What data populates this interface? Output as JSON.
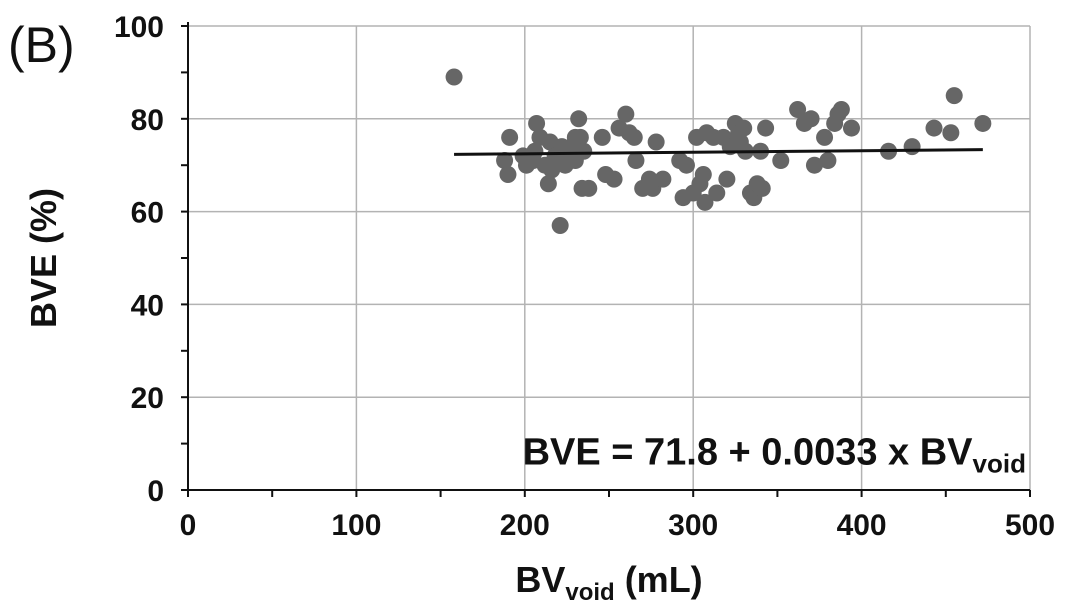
{
  "panel_label": "(B)",
  "chart_data": {
    "type": "scatter",
    "title": "",
    "xlabel": {
      "main": "BV",
      "sub": "void",
      "tail": " (mL)"
    },
    "ylabel": "BVE (%)",
    "xlim": [
      0,
      500
    ],
    "ylim": [
      0,
      100
    ],
    "xticks": [
      0,
      100,
      200,
      300,
      400,
      500
    ],
    "yticks": [
      0,
      20,
      40,
      60,
      80,
      100
    ],
    "x_minor_step": 50,
    "y_minor_step": 10,
    "grid": true,
    "point_color": "#666666",
    "line_color": "#111111",
    "points": [
      [
        158,
        89
      ],
      [
        188,
        71
      ],
      [
        190,
        68
      ],
      [
        191,
        76
      ],
      [
        199,
        72
      ],
      [
        201,
        70
      ],
      [
        205,
        71
      ],
      [
        206,
        73
      ],
      [
        207,
        79
      ],
      [
        209,
        76
      ],
      [
        212,
        70
      ],
      [
        214,
        66
      ],
      [
        215,
        75
      ],
      [
        216,
        69
      ],
      [
        218,
        72
      ],
      [
        219,
        71
      ],
      [
        221,
        57
      ],
      [
        222,
        74
      ],
      [
        224,
        70
      ],
      [
        226,
        73
      ],
      [
        228,
        74
      ],
      [
        230,
        71
      ],
      [
        230,
        76
      ],
      [
        232,
        80
      ],
      [
        233,
        76
      ],
      [
        234,
        65
      ],
      [
        235,
        73
      ],
      [
        238,
        65
      ],
      [
        246,
        76
      ],
      [
        248,
        68
      ],
      [
        253,
        67
      ],
      [
        256,
        78
      ],
      [
        260,
        81
      ],
      [
        262,
        77
      ],
      [
        265,
        76
      ],
      [
        266,
        71
      ],
      [
        270,
        65
      ],
      [
        274,
        67
      ],
      [
        276,
        65
      ],
      [
        278,
        75
      ],
      [
        282,
        67
      ],
      [
        292,
        71
      ],
      [
        294,
        63
      ],
      [
        296,
        70
      ],
      [
        300,
        64
      ],
      [
        302,
        76
      ],
      [
        304,
        66
      ],
      [
        306,
        68
      ],
      [
        307,
        62
      ],
      [
        308,
        77
      ],
      [
        312,
        76
      ],
      [
        314,
        64
      ],
      [
        318,
        76
      ],
      [
        320,
        67
      ],
      [
        322,
        74
      ],
      [
        325,
        79
      ],
      [
        326,
        75
      ],
      [
        327,
        77
      ],
      [
        328,
        75
      ],
      [
        330,
        78
      ],
      [
        331,
        73
      ],
      [
        334,
        64
      ],
      [
        336,
        63
      ],
      [
        338,
        66
      ],
      [
        340,
        73
      ],
      [
        341,
        65
      ],
      [
        343,
        78
      ],
      [
        352,
        71
      ],
      [
        362,
        82
      ],
      [
        366,
        79
      ],
      [
        370,
        80
      ],
      [
        372,
        70
      ],
      [
        378,
        76
      ],
      [
        380,
        71
      ],
      [
        384,
        79
      ],
      [
        386,
        81
      ],
      [
        388,
        82
      ],
      [
        394,
        78
      ],
      [
        416,
        73
      ],
      [
        430,
        74
      ],
      [
        443,
        78
      ],
      [
        453,
        77
      ],
      [
        455,
        85
      ],
      [
        472,
        79
      ]
    ],
    "fit": {
      "type": "linear",
      "intercept": 71.8,
      "slope": 0.0033,
      "x_range": [
        158,
        472
      ]
    },
    "annotation": {
      "main": "BVE = 71.8 + 0.0033 x BV",
      "sub": "void"
    }
  }
}
